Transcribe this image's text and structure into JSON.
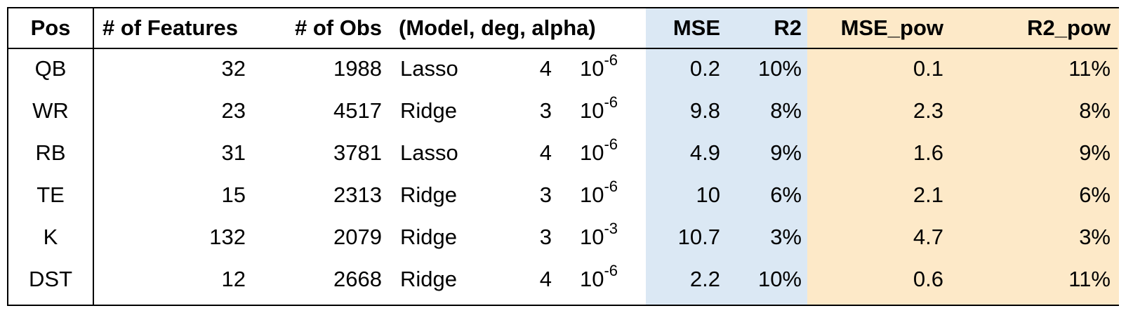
{
  "chart_data": {
    "type": "table",
    "headers": {
      "pos": "Pos",
      "features": "# of Features",
      "obs": "# of Obs",
      "params": "(Model, deg, alpha)",
      "mse": "MSE",
      "r2": "R2",
      "mse_pow": "MSE_pow",
      "r2_pow": "R2_pow"
    },
    "rows": [
      {
        "pos": "QB",
        "features": "32",
        "obs": "1988",
        "model": "Lasso",
        "deg": "4",
        "alpha_base": "10",
        "alpha_exp": "-6",
        "mse": "0.2",
        "r2": "10%",
        "mse_pow": "0.1",
        "r2_pow": "11%"
      },
      {
        "pos": "WR",
        "features": "23",
        "obs": "4517",
        "model": "Ridge",
        "deg": "3",
        "alpha_base": "10",
        "alpha_exp": "-6",
        "mse": "9.8",
        "r2": "8%",
        "mse_pow": "2.3",
        "r2_pow": "8%"
      },
      {
        "pos": "RB",
        "features": "31",
        "obs": "3781",
        "model": "Lasso",
        "deg": "4",
        "alpha_base": "10",
        "alpha_exp": "-6",
        "mse": "4.9",
        "r2": "9%",
        "mse_pow": "1.6",
        "r2_pow": "9%"
      },
      {
        "pos": "TE",
        "features": "15",
        "obs": "2313",
        "model": "Ridge",
        "deg": "3",
        "alpha_base": "10",
        "alpha_exp": "-6",
        "mse": "10",
        "r2": "6%",
        "mse_pow": "2.1",
        "r2_pow": "6%"
      },
      {
        "pos": "K",
        "features": "132",
        "obs": "2079",
        "model": "Ridge",
        "deg": "3",
        "alpha_base": "10",
        "alpha_exp": "-3",
        "mse": "10.7",
        "r2": "3%",
        "mse_pow": "4.7",
        "r2_pow": "3%"
      },
      {
        "pos": "DST",
        "features": "12",
        "obs": "2668",
        "model": "Ridge",
        "deg": "4",
        "alpha_base": "10",
        "alpha_exp": "-6",
        "mse": "2.2",
        "r2": "10%",
        "mse_pow": "0.6",
        "r2_pow": "11%"
      }
    ],
    "colors": {
      "metrics_shade": "#dbe8f4",
      "pow_metrics_shade": "#fde9c8"
    }
  }
}
